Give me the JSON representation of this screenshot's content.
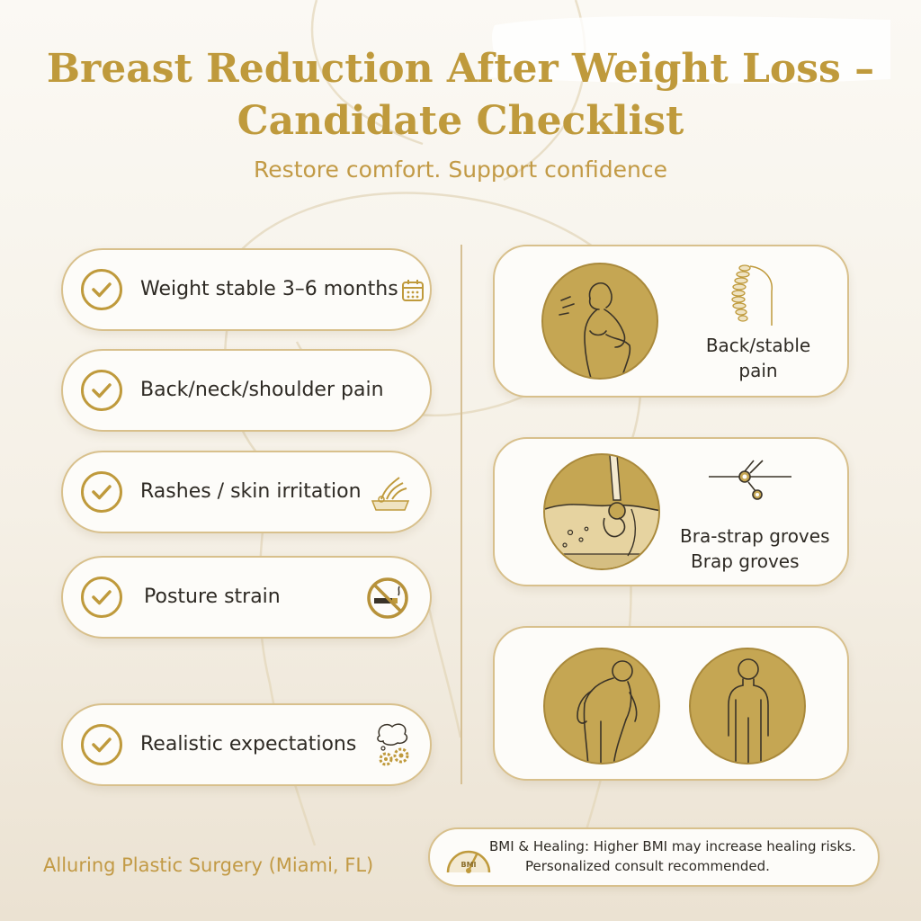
{
  "header": {
    "title_line1": "Breast Reduction After Weight Loss –",
    "title_line2": "Candidate Checklist",
    "subtitle": "Restore comfort. Support confidence"
  },
  "checklist": [
    {
      "label": "Weight stable 3–6 months",
      "icon": "calendar-icon"
    },
    {
      "label": "Back/neck/shoulder pain",
      "icon": ""
    },
    {
      "label": "Rashes / skin irritation",
      "icon": "skin-irritation-icon"
    },
    {
      "label": "Posture strain",
      "icon": "no-smoking-icon"
    },
    {
      "label": "Realistic expectations",
      "icon": "thought-gears-icon"
    }
  ],
  "cards": [
    {
      "line1": "Back/stable",
      "line2": "pain",
      "icons": [
        "woman-back-pain-illustration",
        "spine-icon"
      ]
    },
    {
      "line1": "Bra-strap groves",
      "line2": "Brap groves",
      "icons": [
        "bra-strap-skin-illustration",
        "bra-strap-icon"
      ]
    },
    {
      "icons": [
        "slouched-posture-illustration",
        "upright-posture-illustration"
      ]
    }
  ],
  "footer": {
    "brand": "Alluring Plastic Surgery (Miami, FL)",
    "note_line1": "BMI & Healing: Higher BMI may increase healing risks.",
    "note_line2": "Personalized consult recommended.",
    "gauge_label": "BMI"
  },
  "colors": {
    "gold": "#bf9a3c",
    "circle_fill": "#c5a653",
    "border": "#d8c08c",
    "background": "#f5f0e6"
  }
}
